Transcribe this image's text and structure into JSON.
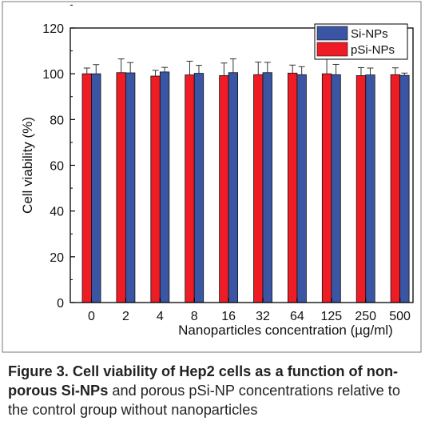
{
  "chart_data": {
    "type": "bar",
    "categories": [
      "0",
      "2",
      "4",
      "8",
      "16",
      "32",
      "64",
      "125",
      "250",
      "500"
    ],
    "series": [
      {
        "name": "pSi-NPs",
        "color": "#ee1c25",
        "values": [
          100.0,
          100.5,
          99.0,
          99.5,
          99.2,
          99.6,
          100.3,
          100.0,
          99.2,
          99.6
        ],
        "errors": [
          2.5,
          6.0,
          2.5,
          6.0,
          5.5,
          5.5,
          3.5,
          6.5,
          3.5,
          3.0
        ]
      },
      {
        "name": "Si-NPs",
        "color": "#3a55a3",
        "values": [
          100.0,
          100.4,
          100.8,
          100.2,
          100.5,
          100.5,
          99.6,
          99.6,
          99.5,
          99.3
        ],
        "errors": [
          4.0,
          4.5,
          2.0,
          3.5,
          6.0,
          4.5,
          3.5,
          4.5,
          3.0,
          1.0
        ]
      }
    ],
    "title": "",
    "xlabel": "Nanoparticles concentration (µg/ml)",
    "ylabel": "Cell viability (%)",
    "ylim": [
      0,
      120
    ],
    "yticks": [
      0,
      20,
      40,
      60,
      80,
      100,
      120
    ],
    "grid": false,
    "legend_position": "top-right",
    "error_bars": true
  },
  "caption": {
    "bold_part": "Figure 3. Cell viability of Hep2 cells as a function of non-porous Si-NPs",
    "rest": " and porous pSi-NP concentrations relative to the control group without nanoparticles"
  }
}
